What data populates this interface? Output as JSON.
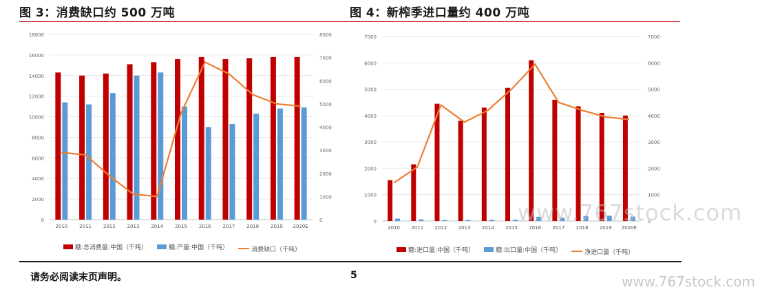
{
  "left_title": "图 3：消费缺口约 500 万吨",
  "right_title": "图 4：新榨季进口量约 400 万吨",
  "footer": {
    "note": "请务必阅读末页声明。",
    "page_number": "5"
  },
  "watermark": {
    "large": "www.767stock.com",
    "small": "www.767stock.com"
  },
  "colors": {
    "red": "#c00000",
    "blue": "#5b9bd5",
    "orange": "#ed7d31",
    "rule": "#c00000"
  },
  "chart_data": [
    {
      "type": "bar",
      "categories": [
        "2010",
        "2011",
        "2012",
        "2013",
        "2014",
        "2015",
        "2016",
        "2017",
        "2018",
        "2019",
        "2020E"
      ],
      "series": [
        {
          "name": "糖:总消费量:中国（千吨）",
          "kind": "bar",
          "axis": "left",
          "values": [
            14300,
            14000,
            14200,
            15100,
            15300,
            15600,
            15800,
            15600,
            15700,
            15800,
            15800
          ]
        },
        {
          "name": "糖:产量:中国（千吨）",
          "kind": "bar",
          "axis": "left",
          "values": [
            11400,
            11200,
            12300,
            14000,
            14300,
            11000,
            9000,
            9300,
            10300,
            10800,
            10900
          ]
        },
        {
          "name": "消费缺口（千吨）",
          "kind": "line",
          "axis": "right",
          "values": [
            2900,
            2800,
            1900,
            1100,
            1000,
            4600,
            6800,
            6300,
            5400,
            5000,
            4900
          ]
        }
      ],
      "left_axis": {
        "min": 0,
        "max": 18000,
        "ticks": [
          "0",
          "2000",
          "4000",
          "6000",
          "8000",
          "10000",
          "12000",
          "14000",
          "16000",
          "18000"
        ]
      },
      "right_axis": {
        "min": 0,
        "max": 8000,
        "ticks": [
          "0",
          "1000",
          "2000",
          "3000",
          "4000",
          "5000",
          "6000",
          "7000",
          "8000"
        ]
      }
    },
    {
      "type": "bar",
      "categories": [
        "2010",
        "2011",
        "2012",
        "2013",
        "2014",
        "2015",
        "2016",
        "2017",
        "2018",
        "2019",
        "2020E"
      ],
      "series": [
        {
          "name": "糖:进口量:中国（千吨）",
          "kind": "bar",
          "axis": "left",
          "values": [
            1550,
            2150,
            4450,
            3800,
            4300,
            5050,
            6100,
            4600,
            4350,
            4100,
            4000
          ]
        },
        {
          "name": "糖:出口量:中国（千吨）",
          "kind": "bar",
          "axis": "left",
          "values": [
            90,
            60,
            40,
            40,
            50,
            50,
            160,
            120,
            190,
            200,
            170
          ]
        },
        {
          "name": "净进口量（千吨）",
          "kind": "line",
          "axis": "right",
          "values": [
            1450,
            2050,
            4400,
            3750,
            4200,
            5000,
            5950,
            4500,
            4200,
            3950,
            3850
          ]
        }
      ],
      "left_axis": {
        "min": 0,
        "max": 7000,
        "ticks": [
          "0",
          "1000",
          "2000",
          "3000",
          "4000",
          "5000",
          "6000",
          "7000"
        ]
      },
      "right_axis": {
        "min": 0,
        "max": 7000,
        "ticks": [
          "0",
          "1000",
          "2000",
          "3000",
          "4000",
          "5000",
          "6000",
          "7000"
        ]
      }
    }
  ]
}
